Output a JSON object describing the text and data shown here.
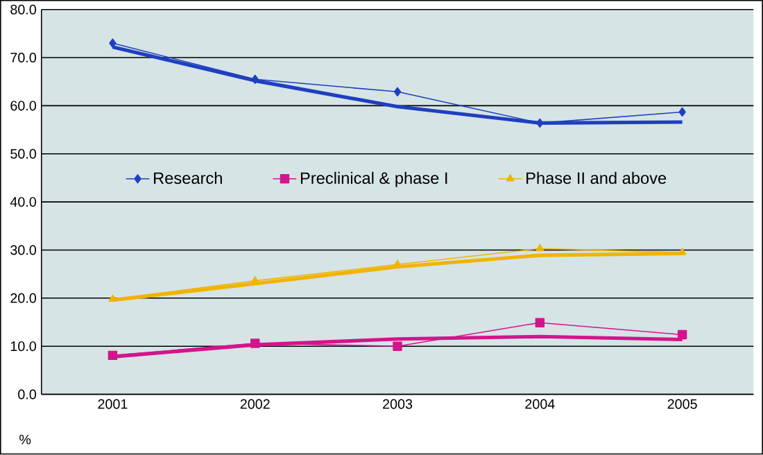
{
  "chart_data": {
    "type": "line",
    "ylabel": "%",
    "categories": [
      "2001",
      "2002",
      "2003",
      "2004",
      "2005"
    ],
    "ylim": [
      0,
      80
    ],
    "yticks": [
      {
        "value": 0,
        "label": "0.0"
      },
      {
        "value": 10,
        "label": "10.0"
      },
      {
        "value": 20,
        "label": "20.0"
      },
      {
        "value": 30,
        "label": "30.0"
      },
      {
        "value": 40,
        "label": "40.0"
      },
      {
        "value": 50,
        "label": "50.0"
      },
      {
        "value": 60,
        "label": "60.0"
      },
      {
        "value": 70,
        "label": "70.0"
      },
      {
        "value": 80,
        "label": "80.0"
      }
    ],
    "grid": "y",
    "legend": "center",
    "series": [
      {
        "name": "Research",
        "color": "#1f3fbf",
        "marker": "diamond",
        "values": [
          73.0,
          65.5,
          62.9,
          56.4,
          58.7
        ]
      },
      {
        "name": "Preclinical & phase I",
        "color": "#d4148c",
        "marker": "square",
        "values": [
          8.1,
          10.6,
          10.0,
          14.9,
          12.4
        ]
      },
      {
        "name": "Phase II and above",
        "color": "#f0b400",
        "marker": "triangle",
        "values": [
          19.8,
          23.6,
          27.0,
          30.3,
          29.5
        ]
      },
      {
        "color": "#1f3fbf",
        "marker": "none",
        "values": [
          72.2,
          65.2,
          59.8,
          56.4,
          56.6
        ]
      },
      {
        "color": "#d4148c",
        "marker": "none",
        "values": [
          7.8,
          10.3,
          11.5,
          12.0,
          11.4
        ]
      },
      {
        "color": "#f0b400",
        "marker": "none",
        "values": [
          19.6,
          23.0,
          26.5,
          28.9,
          29.3
        ]
      }
    ]
  }
}
